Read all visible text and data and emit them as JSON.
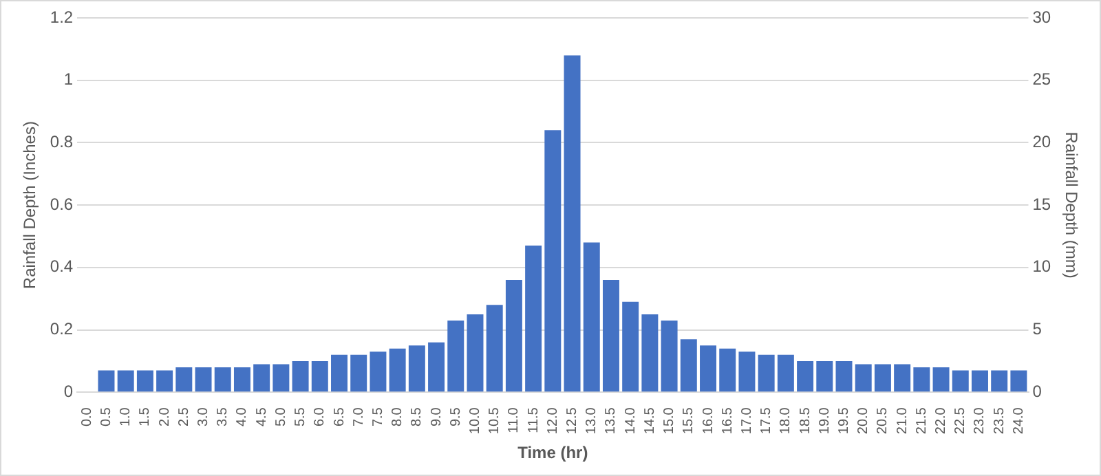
{
  "chart_data": {
    "type": "bar",
    "xlabel": "Time (hr)",
    "ylabel": "Rainfall Depth (Inches)",
    "y2label": "Rainfall Depth (mm)",
    "categories": [
      "0.0",
      "0.5",
      "1.0",
      "1.5",
      "2.0",
      "2.5",
      "3.0",
      "3.5",
      "4.0",
      "4.5",
      "5.0",
      "5.5",
      "6.0",
      "6.5",
      "7.0",
      "7.5",
      "8.0",
      "8.5",
      "9.0",
      "9.5",
      "10.0",
      "10.5",
      "11.0",
      "11.5",
      "12.0",
      "12.5",
      "13.0",
      "13.5",
      "14.0",
      "14.5",
      "15.0",
      "15.5",
      "16.0",
      "16.5",
      "17.0",
      "17.5",
      "18.0",
      "18.5",
      "19.0",
      "19.5",
      "20.0",
      "20.5",
      "21.0",
      "21.5",
      "22.0",
      "22.5",
      "23.0",
      "23.5",
      "24.0"
    ],
    "values": [
      0,
      0.07,
      0.07,
      0.07,
      0.07,
      0.08,
      0.08,
      0.08,
      0.08,
      0.09,
      0.09,
      0.1,
      0.1,
      0.12,
      0.12,
      0.13,
      0.14,
      0.15,
      0.16,
      0.23,
      0.25,
      0.28,
      0.36,
      0.47,
      0.84,
      1.08,
      0.48,
      0.36,
      0.29,
      0.25,
      0.23,
      0.17,
      0.15,
      0.14,
      0.13,
      0.12,
      0.12,
      0.1,
      0.1,
      0.1,
      0.09,
      0.09,
      0.09,
      0.08,
      0.08,
      0.07,
      0.07,
      0.07,
      0.07
    ],
    "color": "#4472c4",
    "ylim": [
      0,
      1.2
    ],
    "yticks": [
      0,
      0.2,
      0.4,
      0.6,
      0.8,
      1,
      1.2
    ],
    "y2lim": [
      0,
      30
    ],
    "y2ticks": [
      0,
      5,
      10,
      15,
      20,
      25,
      30
    ],
    "grid": "y",
    "legend": false
  }
}
